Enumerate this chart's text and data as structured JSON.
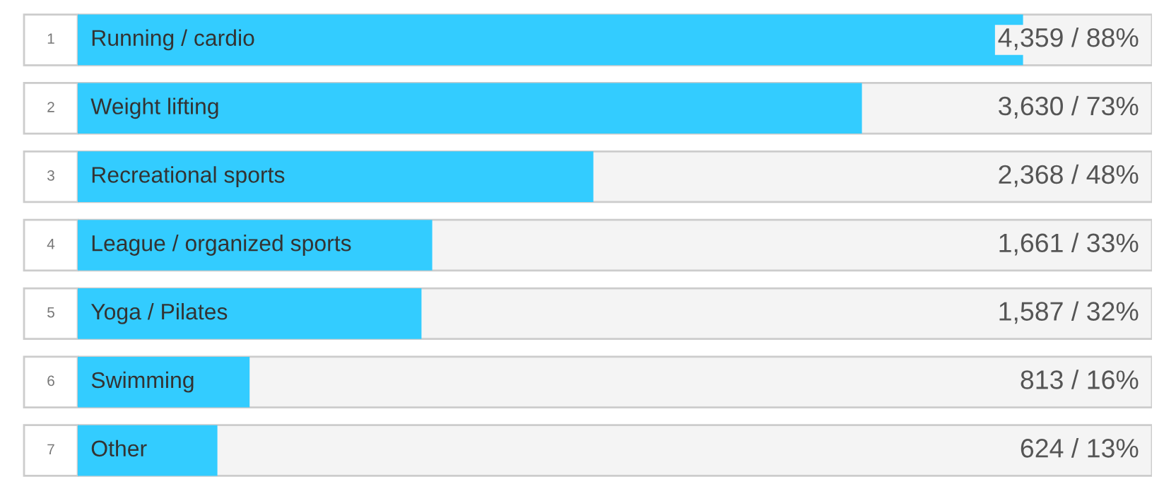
{
  "chart_data": {
    "type": "bar",
    "orientation": "horizontal",
    "categories": [
      "Running / cardio",
      "Weight lifting",
      "Recreational sports",
      "League / organized sports",
      "Yoga / Pilates",
      "Swimming",
      "Other"
    ],
    "values": [
      88,
      73,
      48,
      33,
      32,
      16,
      13
    ],
    "value_labels": [
      "4,359 / 88%",
      "3,630 / 73%",
      "2,368 / 48%",
      "1,661 / 33%",
      "1,587 / 32%",
      "813 / 16%",
      "624 / 13%"
    ],
    "color": "#33ccff",
    "xlim": [
      0,
      100
    ],
    "tick_labels": false,
    "annotations": [
      "1",
      "2",
      "3",
      "4",
      "5",
      "6",
      "7"
    ]
  }
}
